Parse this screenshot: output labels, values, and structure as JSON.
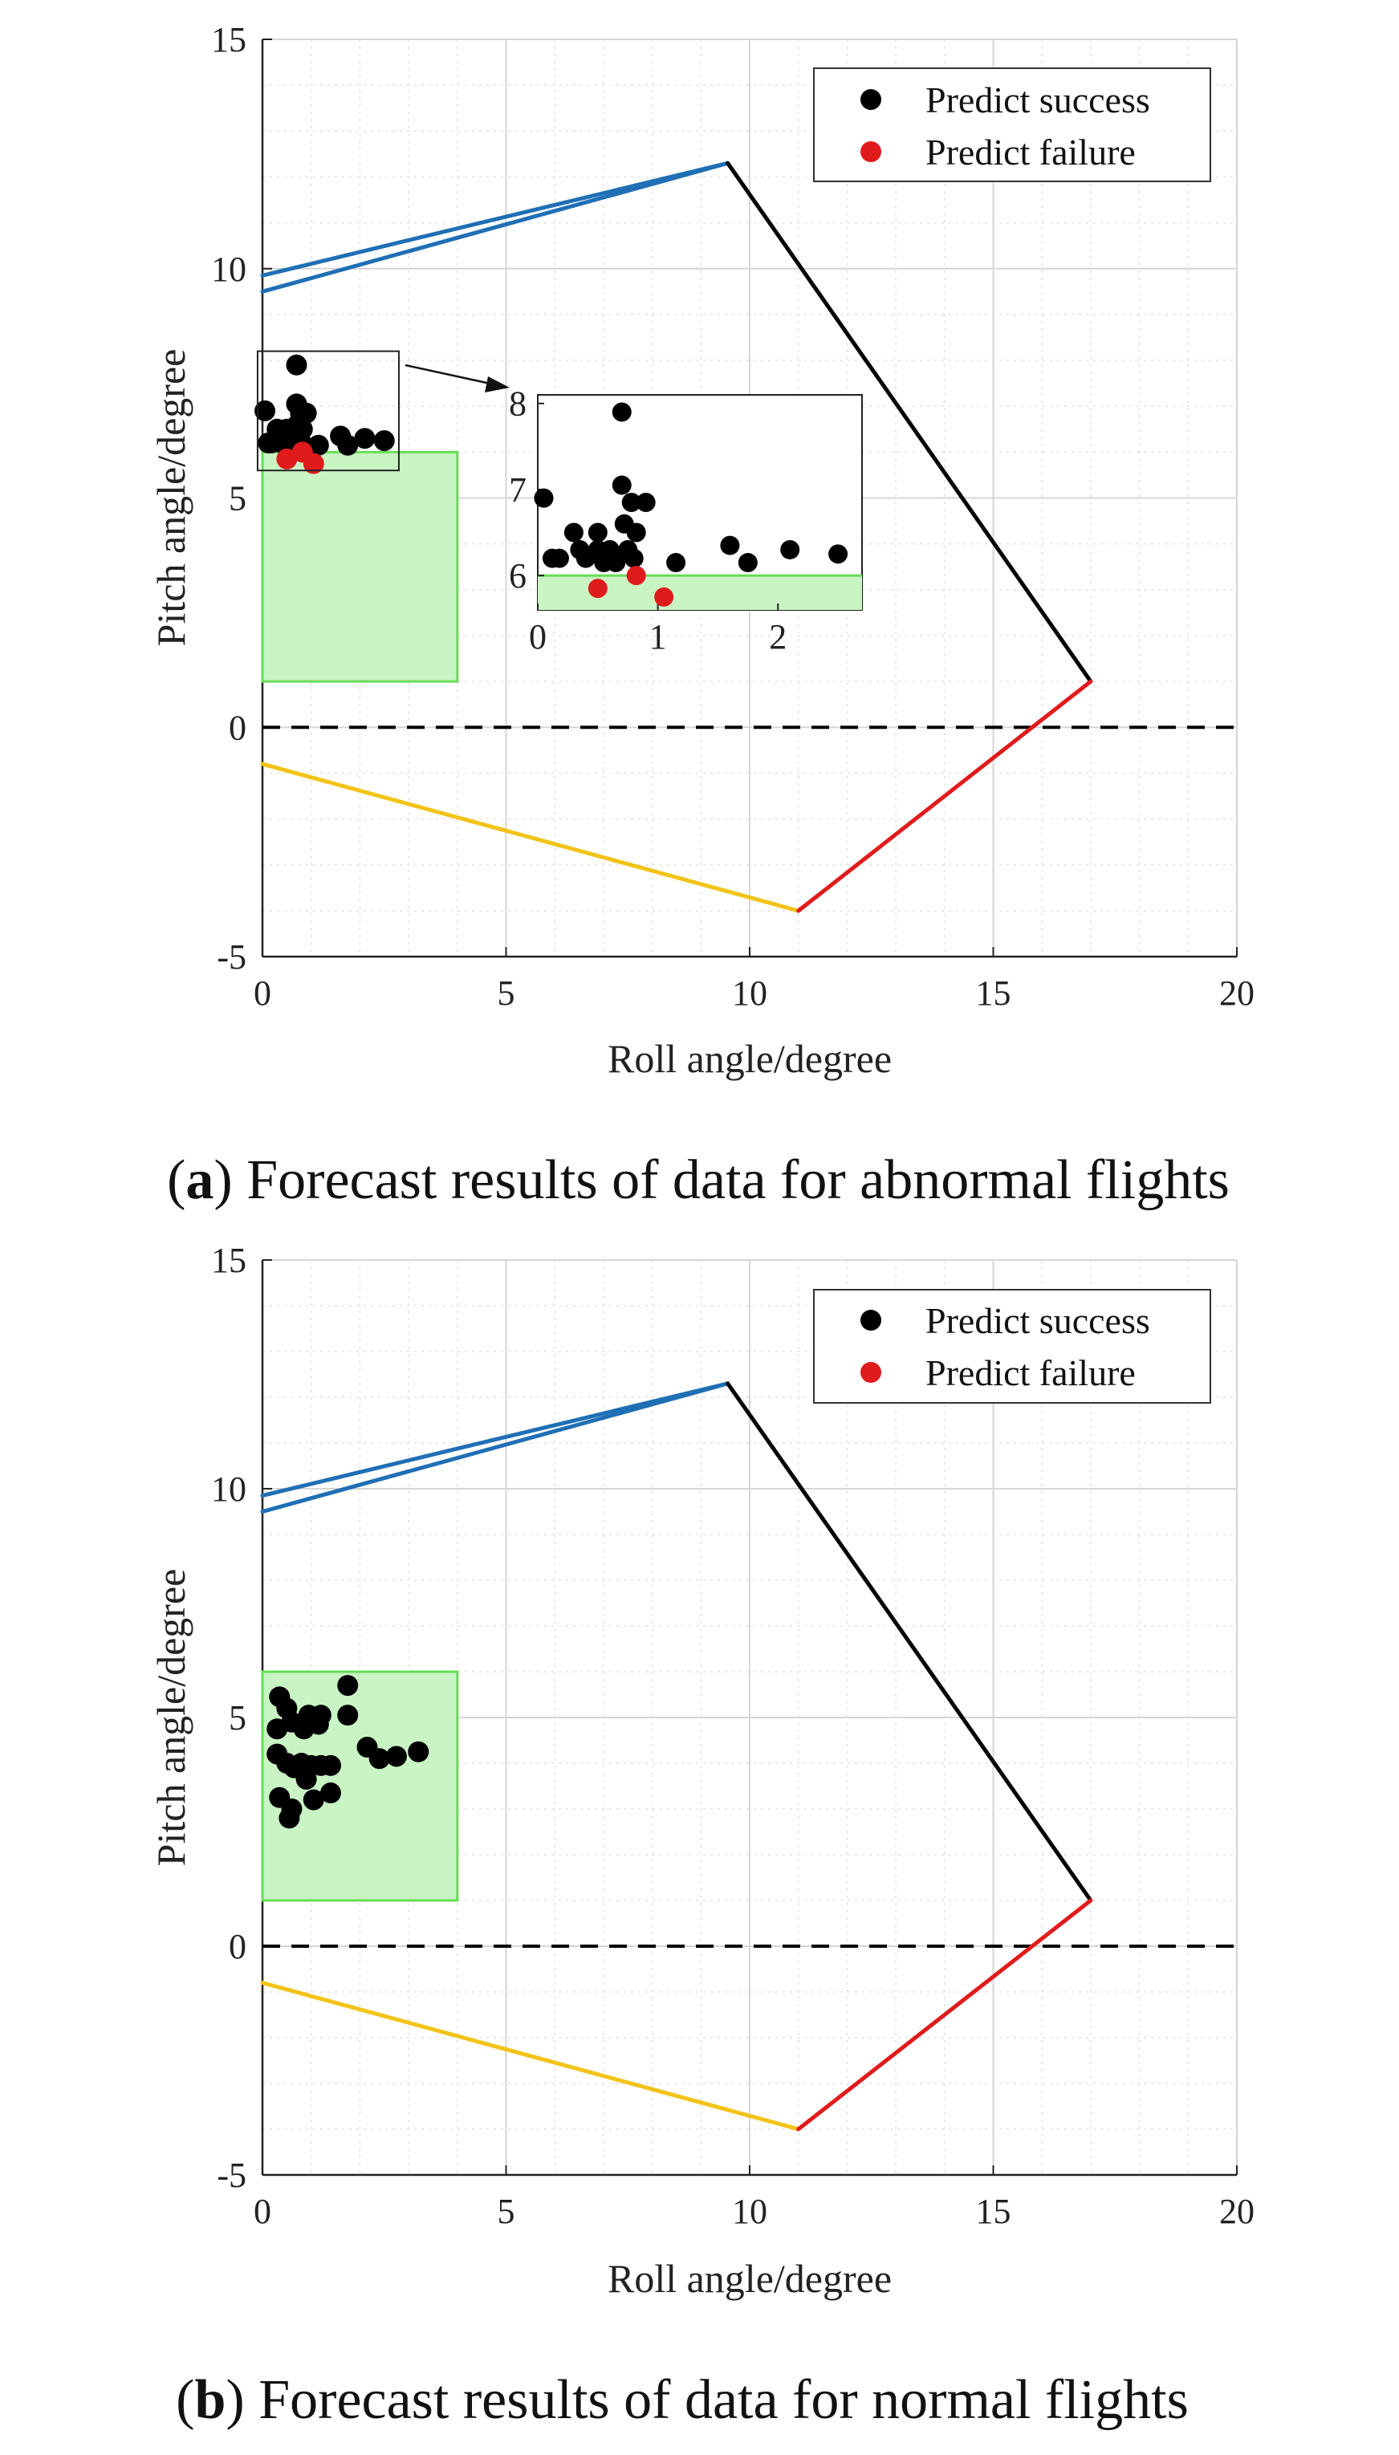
{
  "charts": [
    {
      "id": "a",
      "caption_letter": "a",
      "caption_rest": "Forecast results of data for abnormal flights",
      "chart_data": {
        "type": "scatter",
        "xlabel": "Roll angle/degree",
        "ylabel": "Pitch angle/degree",
        "xlim": [
          0,
          20
        ],
        "ylim": [
          -5,
          15
        ],
        "xticks": [
          0,
          5,
          10,
          15,
          20
        ],
        "yticks": [
          -5,
          0,
          5,
          10,
          15
        ],
        "grid": true,
        "legend": {
          "position": "top-right",
          "entries": [
            "Predict success",
            "Predict failure"
          ]
        },
        "boundary_lines": [
          {
            "color": "#1f6fb5",
            "points": [
              [
                0,
                9.85
              ],
              [
                9.55,
                12.3
              ]
            ]
          },
          {
            "color": "#1f6fb5",
            "points": [
              [
                0,
                9.5
              ],
              [
                9.55,
                12.3
              ]
            ]
          },
          {
            "color": "#000000",
            "points": [
              [
                9.55,
                12.3
              ],
              [
                17,
                1.0
              ]
            ]
          },
          {
            "color": "#f2c318",
            "points": [
              [
                0,
                -0.8
              ],
              [
                11,
                -4.0
              ]
            ]
          },
          {
            "color": "#e01b1b",
            "points": [
              [
                11,
                -4.0
              ],
              [
                17,
                1.0
              ]
            ]
          }
        ],
        "reference_line": {
          "y": 0,
          "style": "dashed"
        },
        "region": {
          "x": [
            0,
            4
          ],
          "y": [
            1,
            6
          ]
        },
        "series": [
          {
            "name": "Predict success",
            "color": "#000000",
            "points": [
              [
                0.05,
                6.9
              ],
              [
                0.12,
                6.2
              ],
              [
                0.18,
                6.2
              ],
              [
                0.3,
                6.5
              ],
              [
                0.35,
                6.3
              ],
              [
                0.4,
                6.2
              ],
              [
                0.5,
                6.5
              ],
              [
                0.5,
                6.3
              ],
              [
                0.55,
                6.15
              ],
              [
                0.6,
                6.3
              ],
              [
                0.65,
                6.15
              ],
              [
                0.7,
                7.9
              ],
              [
                0.7,
                7.05
              ],
              [
                0.72,
                6.6
              ],
              [
                0.75,
                6.3
              ],
              [
                0.78,
                6.85
              ],
              [
                0.8,
                6.2
              ],
              [
                0.82,
                6.5
              ],
              [
                0.9,
                6.85
              ],
              [
                1.15,
                6.15
              ],
              [
                1.6,
                6.35
              ],
              [
                1.75,
                6.15
              ],
              [
                2.1,
                6.3
              ],
              [
                2.5,
                6.25
              ]
            ]
          },
          {
            "name": "Predict failure",
            "color": "#e01b1b",
            "points": [
              [
                0.5,
                5.85
              ],
              [
                0.82,
                6.0
              ],
              [
                1.05,
                5.75
              ]
            ]
          }
        ],
        "inset": {
          "xlim": [
            0,
            2.7
          ],
          "ylim": [
            5.6,
            8.1
          ],
          "xticks": [
            0,
            1,
            2
          ],
          "yticks": [
            6,
            7,
            8
          ],
          "source_box": {
            "x": [
              -0.1,
              2.8
            ],
            "y": [
              5.6,
              8.2
            ]
          }
        }
      }
    },
    {
      "id": "b",
      "caption_letter": "b",
      "caption_rest": "Forecast results of data for normal flights",
      "chart_data": {
        "type": "scatter",
        "xlabel": "Roll angle/degree",
        "ylabel": "Pitch angle/degree",
        "xlim": [
          0,
          20
        ],
        "ylim": [
          -5,
          15
        ],
        "xticks": [
          0,
          5,
          10,
          15,
          20
        ],
        "yticks": [
          -5,
          0,
          5,
          10,
          15
        ],
        "grid": true,
        "legend": {
          "position": "top-right",
          "entries": [
            "Predict success",
            "Predict failure"
          ]
        },
        "boundary_lines": [
          {
            "color": "#1f6fb5",
            "points": [
              [
                0,
                9.85
              ],
              [
                9.55,
                12.3
              ]
            ]
          },
          {
            "color": "#1f6fb5",
            "points": [
              [
                0,
                9.5
              ],
              [
                9.55,
                12.3
              ]
            ]
          },
          {
            "color": "#000000",
            "points": [
              [
                9.55,
                12.3
              ],
              [
                17,
                1.0
              ]
            ]
          },
          {
            "color": "#f2c318",
            "points": [
              [
                0,
                -0.8
              ],
              [
                11,
                -4.0
              ]
            ]
          },
          {
            "color": "#e01b1b",
            "points": [
              [
                11,
                -4.0
              ],
              [
                17,
                1.0
              ]
            ]
          }
        ],
        "reference_line": {
          "y": 0,
          "style": "dashed"
        },
        "region": {
          "x": [
            0,
            4
          ],
          "y": [
            1,
            6
          ]
        },
        "series": [
          {
            "name": "Predict success",
            "color": "#000000",
            "points": [
              [
                0.35,
                5.45
              ],
              [
                0.5,
                5.2
              ],
              [
                0.3,
                4.75
              ],
              [
                0.6,
                4.9
              ],
              [
                0.85,
                4.75
              ],
              [
                0.95,
                5.05
              ],
              [
                1.2,
                5.05
              ],
              [
                1.15,
                4.85
              ],
              [
                1.75,
                5.7
              ],
              [
                1.75,
                5.05
              ],
              [
                0.3,
                4.2
              ],
              [
                0.5,
                4.0
              ],
              [
                0.65,
                3.9
              ],
              [
                0.8,
                4.0
              ],
              [
                0.9,
                3.65
              ],
              [
                1.0,
                3.95
              ],
              [
                1.2,
                3.95
              ],
              [
                1.4,
                3.95
              ],
              [
                2.15,
                4.35
              ],
              [
                2.4,
                4.1
              ],
              [
                2.75,
                4.15
              ],
              [
                3.2,
                4.25
              ],
              [
                0.35,
                3.25
              ],
              [
                0.6,
                3.0
              ],
              [
                1.05,
                3.2
              ],
              [
                1.4,
                3.35
              ],
              [
                0.55,
                2.8
              ]
            ]
          },
          {
            "name": "Predict failure",
            "color": "#e01b1b",
            "points": []
          }
        ]
      }
    }
  ]
}
